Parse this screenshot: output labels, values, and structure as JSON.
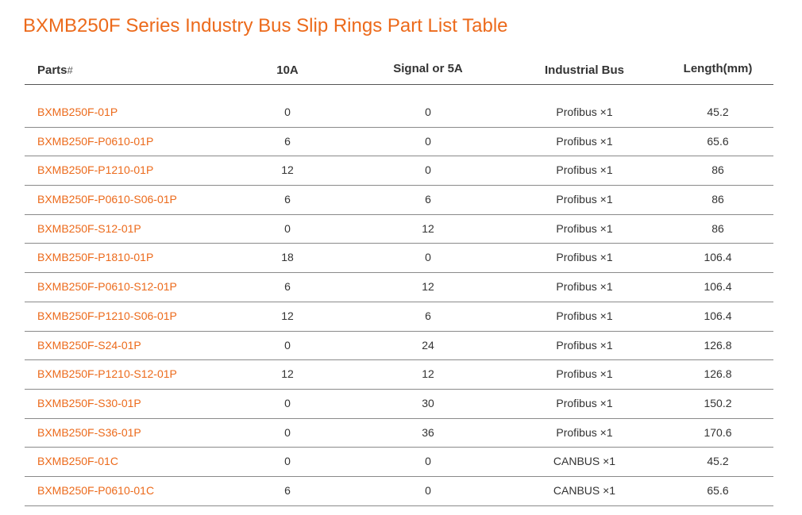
{
  "title": "BXMB250F Series Industry Bus Slip Rings Part List Table",
  "columns": {
    "parts": "Parts",
    "parts_suffix": "#",
    "a10": "10A",
    "signal": "Signal or 5A",
    "bus": "Industrial Bus",
    "length": "Length(mm)"
  },
  "rows": [
    {
      "part": "BXMB250F-01P",
      "a10": "0",
      "signal": "0",
      "bus": "Profibus ×1",
      "length": "45.2"
    },
    {
      "part": "BXMB250F-P0610-01P",
      "a10": "6",
      "signal": "0",
      "bus": "Profibus ×1",
      "length": "65.6"
    },
    {
      "part": "BXMB250F-P1210-01P",
      "a10": "12",
      "signal": "0",
      "bus": "Profibus ×1",
      "length": "86"
    },
    {
      "part": "BXMB250F-P0610-S06-01P",
      "a10": "6",
      "signal": "6",
      "bus": "Profibus ×1",
      "length": "86"
    },
    {
      "part": "BXMB250F-S12-01P",
      "a10": "0",
      "signal": "12",
      "bus": "Profibus ×1",
      "length": "86"
    },
    {
      "part": "BXMB250F-P1810-01P",
      "a10": "18",
      "signal": "0",
      "bus": "Profibus ×1",
      "length": "106.4"
    },
    {
      "part": "BXMB250F-P0610-S12-01P",
      "a10": "6",
      "signal": "12",
      "bus": "Profibus ×1",
      "length": "106.4"
    },
    {
      "part": "BXMB250F-P1210-S06-01P",
      "a10": "12",
      "signal": "6",
      "bus": "Profibus ×1",
      "length": "106.4"
    },
    {
      "part": "BXMB250F-S24-01P",
      "a10": "0",
      "signal": "24",
      "bus": "Profibus ×1",
      "length": "126.8"
    },
    {
      "part": "BXMB250F-P1210-S12-01P",
      "a10": "12",
      "signal": "12",
      "bus": "Profibus ×1",
      "length": "126.8"
    },
    {
      "part": "BXMB250F-S30-01P",
      "a10": "0",
      "signal": "30",
      "bus": "Profibus ×1",
      "length": "150.2"
    },
    {
      "part": "BXMB250F-S36-01P",
      "a10": "0",
      "signal": "36",
      "bus": "Profibus ×1",
      "length": "170.6"
    },
    {
      "part": "BXMB250F-01C",
      "a10": "0",
      "signal": "0",
      "bus": "CANBUS ×1",
      "length": "45.2"
    },
    {
      "part": "BXMB250F-P0610-01C",
      "a10": "6",
      "signal": "0",
      "bus": "CANBUS ×1",
      "length": "65.6"
    }
  ],
  "colors": {
    "accent": "#ec6a1b",
    "text": "#333333",
    "rule": "#8a8a8a"
  }
}
